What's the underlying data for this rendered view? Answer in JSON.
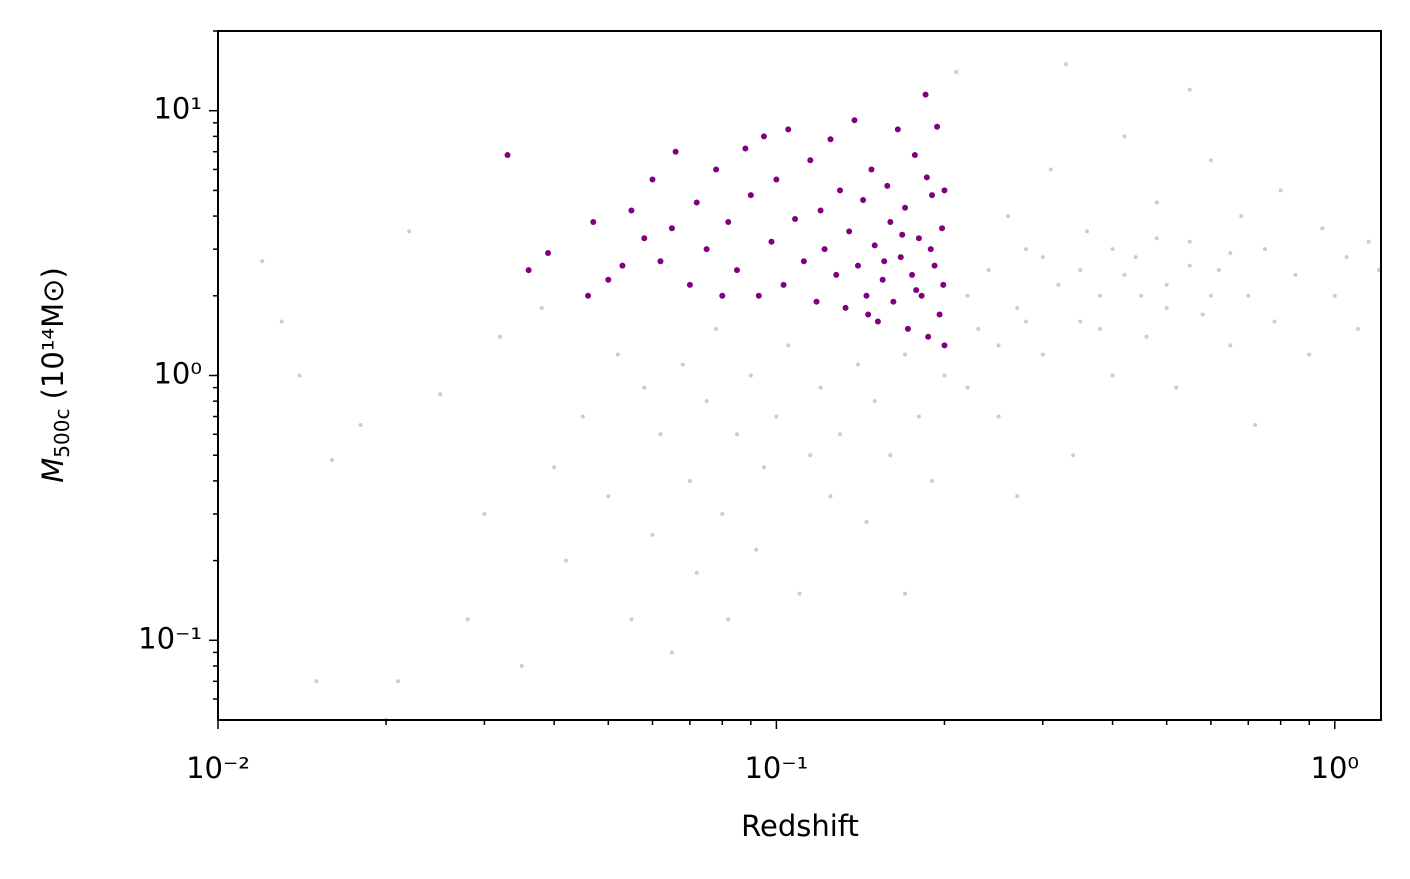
{
  "chart_data": {
    "type": "scatter",
    "xlabel": "Redshift",
    "ylabel": {
      "symbol": "M",
      "subscript": "500c",
      "unit": " (10¹⁴M⊙)"
    },
    "xscale": "log",
    "yscale": "log",
    "xlim": [
      0.01,
      1.21
    ],
    "ylim": [
      0.05,
      20
    ],
    "xticks": [
      {
        "value": 0.01,
        "label": "10⁻²"
      },
      {
        "value": 0.1,
        "label": "10⁻¹"
      },
      {
        "value": 1,
        "label": "10⁰"
      }
    ],
    "yticks": [
      {
        "value": 0.1,
        "label": "10⁻¹"
      },
      {
        "value": 1,
        "label": "10⁰"
      },
      {
        "value": 10,
        "label": "10¹"
      }
    ],
    "xminor": [
      0.02,
      0.03,
      0.04,
      0.05,
      0.06,
      0.07,
      0.08,
      0.09,
      0.2,
      0.3,
      0.4,
      0.5,
      0.6,
      0.7,
      0.8,
      0.9
    ],
    "yminor": [
      0.06,
      0.07,
      0.08,
      0.09,
      0.2,
      0.3,
      0.4,
      0.5,
      0.6,
      0.7,
      0.8,
      0.9,
      2,
      3,
      4,
      5,
      6,
      7,
      8,
      9,
      20
    ],
    "series": [
      {
        "color": "#808080",
        "opacity": 0.4,
        "size": 2,
        "x": [
          0.012,
          0.013,
          0.014,
          0.015,
          0.016,
          0.018,
          0.02,
          0.021,
          0.022,
          0.025,
          0.028,
          0.03,
          0.032,
          0.035,
          0.038,
          0.04,
          0.042,
          0.045,
          0.05,
          0.052,
          0.055,
          0.058,
          0.06,
          0.062,
          0.065,
          0.068,
          0.07,
          0.072,
          0.075,
          0.078,
          0.08,
          0.082,
          0.085,
          0.09,
          0.092,
          0.095,
          0.1,
          0.105,
          0.11,
          0.115,
          0.12,
          0.125,
          0.13,
          0.14,
          0.145,
          0.15,
          0.16,
          0.17,
          0.18,
          0.19,
          0.2,
          0.21,
          0.22,
          0.23,
          0.24,
          0.25,
          0.26,
          0.27,
          0.28,
          0.3,
          0.31,
          0.32,
          0.34,
          0.35,
          0.36,
          0.38,
          0.4,
          0.42,
          0.44,
          0.46,
          0.48,
          0.5,
          0.52,
          0.55,
          0.58,
          0.6,
          0.62,
          0.65,
          0.68,
          0.7,
          0.72,
          0.75,
          0.78,
          0.8,
          0.85,
          0.9,
          0.95,
          1.0,
          1.05,
          1.1,
          1.15,
          1.2,
          0.33,
          0.55,
          0.27,
          0.17,
          0.35,
          0.4,
          0.45,
          0.5,
          0.55,
          0.6,
          0.38,
          0.42,
          0.48,
          0.65,
          0.3,
          0.25,
          0.22,
          0.28
        ],
        "y": [
          2.7,
          1.6,
          1.0,
          0.07,
          0.48,
          0.65,
          0.05,
          0.07,
          3.5,
          0.85,
          0.12,
          0.3,
          1.4,
          0.08,
          1.8,
          0.45,
          0.2,
          0.7,
          0.35,
          1.2,
          0.12,
          0.9,
          0.25,
          0.6,
          0.09,
          1.1,
          0.4,
          0.18,
          0.8,
          1.5,
          0.3,
          0.12,
          0.6,
          1.0,
          0.22,
          0.45,
          0.7,
          1.3,
          0.15,
          0.5,
          0.9,
          0.35,
          0.6,
          1.1,
          0.28,
          0.8,
          0.5,
          1.2,
          0.7,
          0.4,
          1.0,
          14,
          0.9,
          1.5,
          2.5,
          0.7,
          4.0,
          1.8,
          3.0,
          1.2,
          6.0,
          2.2,
          0.5,
          1.6,
          3.5,
          2.0,
          1.0,
          8.0,
          2.8,
          1.4,
          4.5,
          2.2,
          0.9,
          3.2,
          1.7,
          6.5,
          2.5,
          1.3,
          4.0,
          2.0,
          0.65,
          3.0,
          1.6,
          5.0,
          2.4,
          1.2,
          3.6,
          2.0,
          2.8,
          1.5,
          3.2,
          2.5,
          15,
          12,
          0.35,
          0.15,
          2.5,
          3.0,
          2.0,
          1.8,
          2.6,
          2.0,
          1.5,
          2.4,
          3.3,
          2.9,
          2.8,
          1.3,
          2.0,
          1.6
        ]
      },
      {
        "color": "#800080",
        "opacity": 1,
        "size": 3,
        "x": [
          0.033,
          0.036,
          0.039,
          0.046,
          0.047,
          0.05,
          0.053,
          0.055,
          0.058,
          0.06,
          0.062,
          0.065,
          0.066,
          0.07,
          0.072,
          0.075,
          0.078,
          0.08,
          0.082,
          0.085,
          0.088,
          0.09,
          0.093,
          0.095,
          0.098,
          0.1,
          0.103,
          0.105,
          0.108,
          0.112,
          0.115,
          0.118,
          0.12,
          0.122,
          0.125,
          0.128,
          0.13,
          0.133,
          0.135,
          0.138,
          0.14,
          0.143,
          0.145,
          0.148,
          0.15,
          0.152,
          0.155,
          0.158,
          0.16,
          0.162,
          0.165,
          0.167,
          0.17,
          0.172,
          0.175,
          0.177,
          0.18,
          0.182,
          0.185,
          0.187,
          0.19,
          0.192,
          0.194,
          0.196,
          0.198,
          0.2,
          0.2,
          0.199,
          0.189,
          0.178,
          0.168,
          0.156,
          0.146,
          0.186
        ],
        "y": [
          6.8,
          2.5,
          2.9,
          2.0,
          3.8,
          2.3,
          2.6,
          4.2,
          3.3,
          5.5,
          2.7,
          3.6,
          7.0,
          2.2,
          4.5,
          3.0,
          6.0,
          2.0,
          3.8,
          2.5,
          7.2,
          4.8,
          2.0,
          8.0,
          3.2,
          5.5,
          2.2,
          8.5,
          3.9,
          2.7,
          6.5,
          1.9,
          4.2,
          3.0,
          7.8,
          2.4,
          5.0,
          1.8,
          3.5,
          9.2,
          2.6,
          4.6,
          2.0,
          6.0,
          3.1,
          1.6,
          2.3,
          5.2,
          3.8,
          1.9,
          8.5,
          2.8,
          4.3,
          1.5,
          2.4,
          6.8,
          3.3,
          2.0,
          11.5,
          1.4,
          4.8,
          2.6,
          8.7,
          1.7,
          3.6,
          1.3,
          5.0,
          2.2,
          3.0,
          2.1,
          3.4,
          2.7,
          1.7,
          5.6
        ]
      }
    ]
  }
}
